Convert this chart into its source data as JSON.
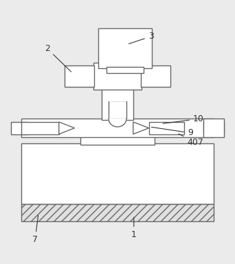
{
  "background_color": "#ebebeb",
  "line_color": "#666666",
  "fill_color": "#ffffff",
  "label_color": "#333333",
  "figsize": [
    3.42,
    3.83
  ],
  "dpi": 100,
  "lw": 1.0
}
